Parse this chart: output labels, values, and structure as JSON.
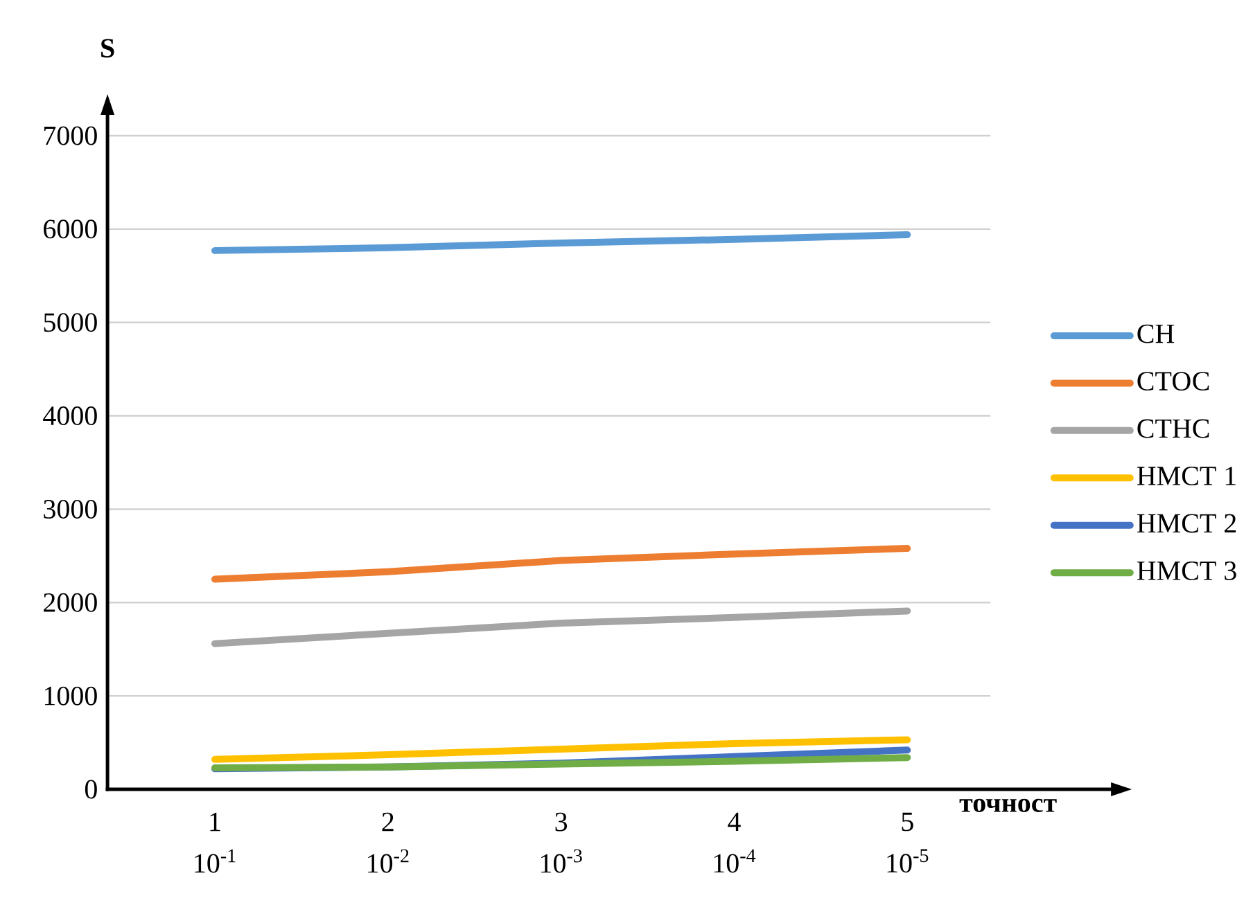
{
  "chart_data": {
    "type": "line",
    "xlabel": "точност",
    "ylabel": "S",
    "categories": [
      "1 10$^{-1}$",
      "2 10$^{-2}$",
      "3 10$^{-3}$",
      "4 10$^{-4}$",
      "5 10$^{-5}$"
    ],
    "series": [
      {
        "name": "СН",
        "color": "#5b9bd5",
        "values": [
          5770,
          5800,
          5850,
          5890,
          5940
        ]
      },
      {
        "name": "СТОС",
        "color": "#ed7d31",
        "values": [
          2250,
          2330,
          2450,
          2520,
          2580
        ]
      },
      {
        "name": "СТНС",
        "color": "#a5a5a5",
        "values": [
          1560,
          1670,
          1780,
          1840,
          1910
        ]
      },
      {
        "name": "НМСТ 1",
        "color": "#ffc000",
        "values": [
          320,
          370,
          430,
          490,
          530
        ]
      },
      {
        "name": "НМСТ 2",
        "color": "#4472c4",
        "values": [
          220,
          240,
          280,
          350,
          420
        ]
      },
      {
        "name": "НМСТ 3",
        "color": "#70ad47",
        "values": [
          230,
          240,
          270,
          300,
          340
        ]
      }
    ],
    "ylim": [
      0,
      7000
    ],
    "yticks": [
      0,
      1000,
      2000,
      3000,
      4000,
      5000,
      6000,
      7000
    ],
    "grid": "y",
    "legend": "right",
    "marker": "none",
    "line_style": "solid"
  }
}
